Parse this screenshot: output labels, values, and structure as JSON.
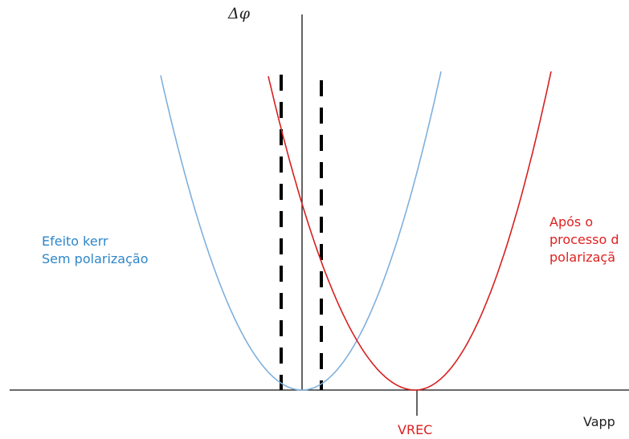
{
  "colors": {
    "axis": "#111111",
    "blue_curve": "#7fb0dc",
    "red_curve": "#d62020",
    "blue_text": "#2e86c9",
    "red_text": "#e02020",
    "dashed": "#000000"
  },
  "axes": {
    "y_label": "Δφ",
    "x_label": "Vapp"
  },
  "markers": {
    "vrec_label": "VREC"
  },
  "curves": {
    "blue": {
      "label_line1": "Efeito kerr",
      "label_line2": "Sem polarização"
    },
    "red": {
      "label_line1": "Após o",
      "label_line2": "processo d",
      "label_line3": "polarizaçã"
    }
  }
}
